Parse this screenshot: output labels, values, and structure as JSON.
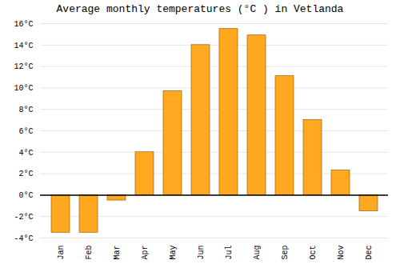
{
  "chart_data": {
    "type": "bar",
    "title": "Average monthly temperatures (°C ) in Vetlanda",
    "categories": [
      "Jan",
      "Feb",
      "Mar",
      "Apr",
      "May",
      "Jun",
      "Jul",
      "Aug",
      "Sep",
      "Oct",
      "Nov",
      "Dec"
    ],
    "values": [
      -3.5,
      -3.5,
      -0.5,
      4.0,
      9.7,
      14.0,
      15.5,
      14.9,
      11.1,
      7.0,
      2.3,
      -1.5
    ],
    "color": "#FFA820",
    "ylim": [
      -4,
      16
    ],
    "yticks": [
      {
        "value": -4,
        "label": "-4°C"
      },
      {
        "value": -2,
        "label": "-2°C"
      },
      {
        "value": 0,
        "label": "0°C"
      },
      {
        "value": 2,
        "label": "2°C"
      },
      {
        "value": 4,
        "label": "4°C"
      },
      {
        "value": 6,
        "label": "6°C"
      },
      {
        "value": 8,
        "label": "8°C"
      },
      {
        "value": 10,
        "label": "10°C"
      },
      {
        "value": 12,
        "label": "12°C"
      },
      {
        "value": 14,
        "label": "14°C"
      },
      {
        "value": 16,
        "label": "16°C"
      }
    ],
    "grid": true
  }
}
